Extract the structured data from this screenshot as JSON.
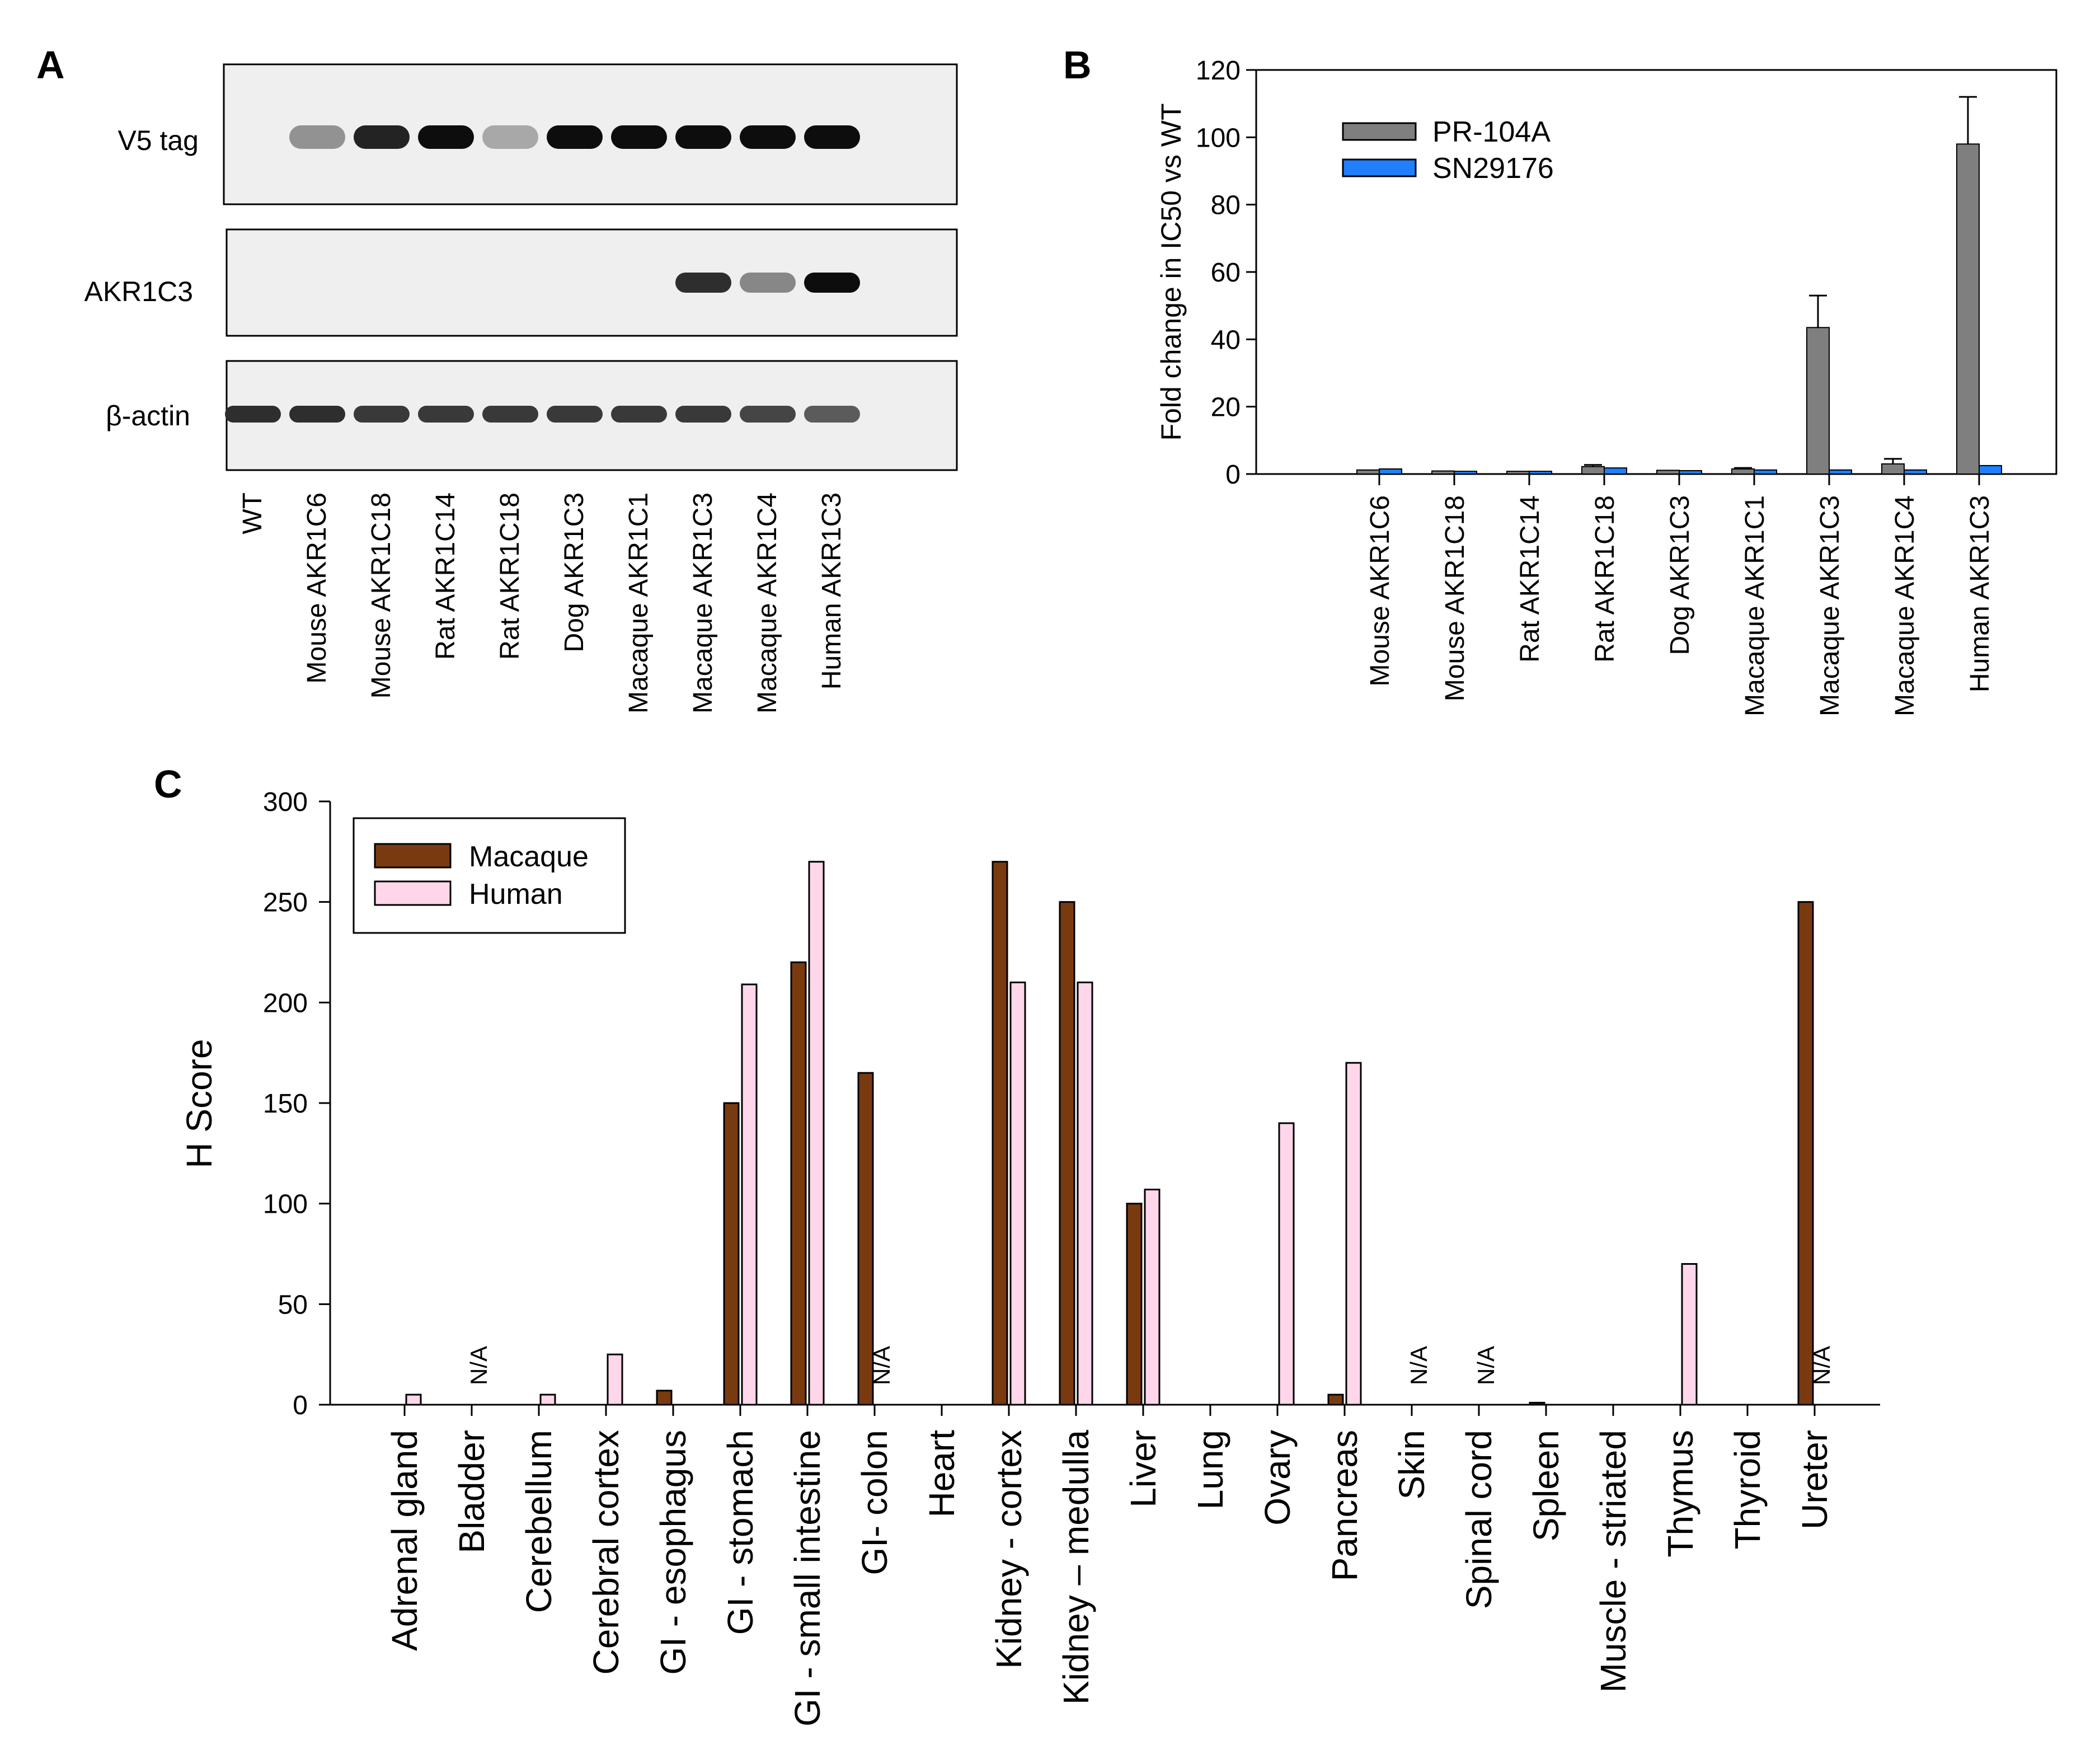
{
  "panel_labels": {
    "a": "A",
    "b": "B",
    "c": "C"
  },
  "colors": {
    "blot_bg": "#efefef",
    "band": "#0d0d0d",
    "pr104a": "#7f7f7f",
    "sn29176": "#1f7fff",
    "macaque": "#7a3a10",
    "human": "#ffd6ea"
  },
  "blot": {
    "row_labels": [
      "V5 tag",
      "AKR1C3",
      "β-actin"
    ],
    "lanes": [
      "WT",
      "Mouse AKR1C6",
      "Mouse AKR1C18",
      "Rat AKR1C14",
      "Rat AKR1C18",
      "Dog AKR1C3",
      "Macaque AKR1C1",
      "Macaque AKR1C3",
      "Macaque AKR1C4",
      "Human AKR1C3"
    ],
    "intensities": {
      "v5": [
        0,
        0.4,
        0.9,
        1.0,
        0.3,
        1.0,
        1.0,
        1.0,
        1.0,
        1.0
      ],
      "akr1c3": [
        0,
        0,
        0,
        0,
        0,
        0,
        0,
        0.85,
        0.45,
        1.0
      ],
      "actin": [
        0.85,
        0.85,
        0.8,
        0.8,
        0.8,
        0.8,
        0.8,
        0.8,
        0.75,
        0.65
      ]
    }
  },
  "chart_data": [
    {
      "type": "bar",
      "panel": "B",
      "title": "",
      "xlabel": "",
      "ylabel": "Fold change in IC50 vs WT",
      "ylim": [
        0,
        120
      ],
      "yticks": [
        0,
        20,
        40,
        60,
        80,
        100,
        120
      ],
      "categories": [
        "Mouse AKR1C6",
        "Mouse AKR1C18",
        "Rat AKR1C14",
        "Rat AKR1C18",
        "Dog AKR1C3",
        "Macaque AKR1C1",
        "Macaque AKR1C3",
        "Macaque AKR1C4",
        "Human AKR1C3"
      ],
      "series": [
        {
          "name": "PR-104A",
          "values": [
            1.2,
            0.9,
            0.8,
            2.2,
            1.1,
            1.5,
            43.5,
            3.0,
            98.0
          ],
          "errors": [
            0,
            0,
            0,
            0.5,
            0,
            0.3,
            9.5,
            1.5,
            14.0
          ]
        },
        {
          "name": "SN29176",
          "values": [
            1.5,
            0.8,
            0.8,
            1.8,
            1.0,
            1.2,
            1.2,
            1.2,
            2.5
          ],
          "errors": [
            0,
            0,
            0,
            0,
            0,
            0,
            0,
            0,
            0
          ]
        }
      ],
      "legend": "top-left"
    },
    {
      "type": "bar",
      "panel": "C",
      "title": "",
      "xlabel": "",
      "ylabel": "H Score",
      "ylim": [
        0,
        300
      ],
      "yticks": [
        0,
        50,
        100,
        150,
        200,
        250,
        300
      ],
      "categories": [
        "Adrenal gland",
        "Bladder",
        "Cerebellum",
        "Cerebral cortex",
        "GI - esophagus",
        "GI - stomach",
        "GI - small intestine",
        "GI- colon",
        "Heart",
        "Kidney - cortex",
        "Kidney – medulla",
        "Liver",
        "Lung",
        "Ovary",
        "Pancreas",
        "Skin",
        "Spinal cord",
        "Spleen",
        "Muscle - striated",
        "Thymus",
        "Thyroid",
        "Ureter"
      ],
      "series": [
        {
          "name": "Macaque",
          "values": [
            0,
            0,
            0,
            0,
            7,
            150,
            220,
            165,
            0,
            270,
            250,
            100,
            0,
            0,
            5,
            0,
            0,
            1,
            0,
            0,
            0,
            250
          ]
        },
        {
          "name": "Human",
          "values": [
            5,
            null,
            5,
            25,
            0,
            209,
            270,
            null,
            0,
            210,
            210,
            107,
            0,
            140,
            170,
            null,
            null,
            0,
            0,
            70,
            0,
            null
          ]
        }
      ],
      "na_label": "N/A",
      "legend": "top-left"
    }
  ]
}
